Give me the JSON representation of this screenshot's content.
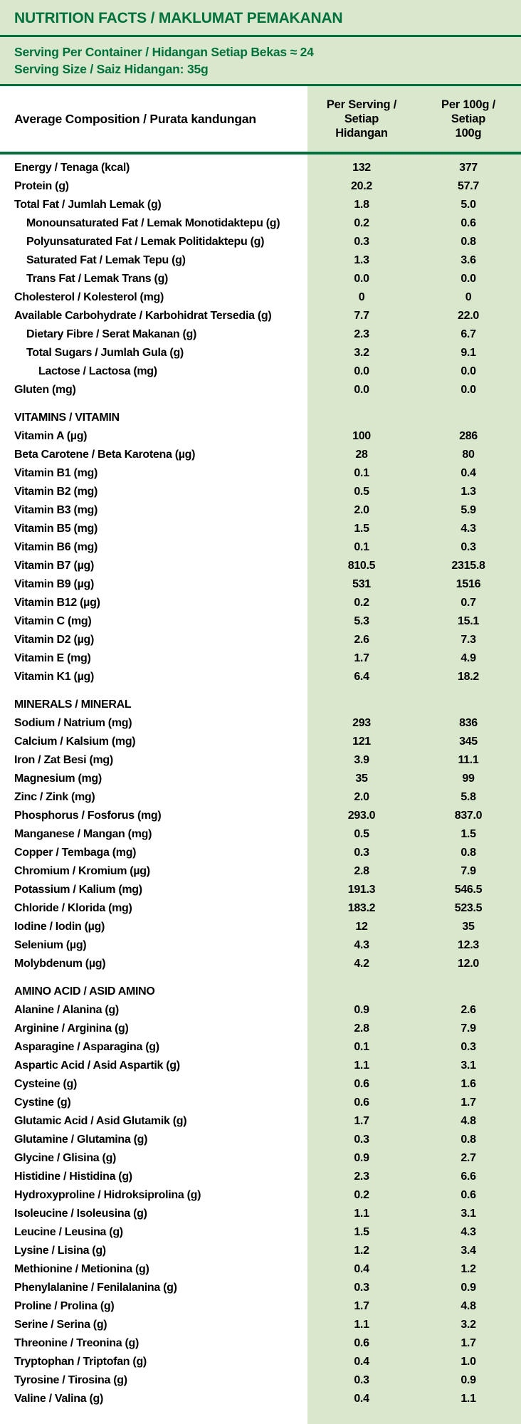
{
  "colors": {
    "dark_green": "#00713d",
    "light_green": "#d9e8cc",
    "text": "#000000"
  },
  "header": {
    "title": "NUTRITION FACTS / MAKLUMAT PEMAKANAN",
    "serving_per_container": "Serving Per Container / Hidangan Setiap Bekas ≈ 24",
    "serving_size": "Serving Size / Saiz Hidangan: 35g"
  },
  "table": {
    "col_composition": "Average Composition / Purata kandungan",
    "col_per_serving": "Per Serving /\nSetiap\nHidangan",
    "col_per_100g": "Per 100g /\nSetiap\n100g",
    "sections": [
      {
        "label": "",
        "rows": [
          {
            "label": "Energy / Tenaga (kcal)",
            "indent": 0,
            "per_serving": "132",
            "per_100g": "377"
          },
          {
            "label": "Protein (g)",
            "indent": 0,
            "per_serving": "20.2",
            "per_100g": "57.7"
          },
          {
            "label": "Total Fat / Jumlah Lemak (g)",
            "indent": 0,
            "per_serving": "1.8",
            "per_100g": "5.0"
          },
          {
            "label": "Monounsaturated Fat / Lemak Monotidaktepu (g)",
            "indent": 1,
            "per_serving": "0.2",
            "per_100g": "0.6"
          },
          {
            "label": "Polyunsaturated Fat / Lemak Politidaktepu (g)",
            "indent": 1,
            "per_serving": "0.3",
            "per_100g": "0.8"
          },
          {
            "label": "Saturated Fat / Lemak Tepu (g)",
            "indent": 1,
            "per_serving": "1.3",
            "per_100g": "3.6"
          },
          {
            "label": "Trans Fat / Lemak Trans (g)",
            "indent": 1,
            "per_serving": "0.0",
            "per_100g": "0.0"
          },
          {
            "label": "Cholesterol / Kolesterol (mg)",
            "indent": 0,
            "per_serving": "0",
            "per_100g": "0"
          },
          {
            "label": "Available Carbohydrate / Karbohidrat Tersedia (g)",
            "indent": 0,
            "per_serving": "7.7",
            "per_100g": "22.0"
          },
          {
            "label": "Dietary Fibre / Serat Makanan (g)",
            "indent": 1,
            "per_serving": "2.3",
            "per_100g": "6.7"
          },
          {
            "label": "Total Sugars / Jumlah Gula (g)",
            "indent": 1,
            "per_serving": "3.2",
            "per_100g": "9.1"
          },
          {
            "label": "Lactose / Lactosa (mg)",
            "indent": 2,
            "per_serving": "0.0",
            "per_100g": "0.0"
          },
          {
            "label": "Gluten (mg)",
            "indent": 0,
            "per_serving": "0.0",
            "per_100g": "0.0"
          }
        ]
      },
      {
        "label": "VITAMINS / VITAMIN",
        "rows": [
          {
            "label": "Vitamin A (µg)",
            "indent": 0,
            "per_serving": "100",
            "per_100g": "286"
          },
          {
            "label": "Beta Carotene / Beta Karotena (µg)",
            "indent": 0,
            "per_serving": "28",
            "per_100g": "80"
          },
          {
            "label": "Vitamin B1 (mg)",
            "indent": 0,
            "per_serving": "0.1",
            "per_100g": "0.4"
          },
          {
            "label": "Vitamin B2 (mg)",
            "indent": 0,
            "per_serving": "0.5",
            "per_100g": "1.3"
          },
          {
            "label": "Vitamin B3 (mg)",
            "indent": 0,
            "per_serving": "2.0",
            "per_100g": "5.9"
          },
          {
            "label": "Vitamin B5 (mg)",
            "indent": 0,
            "per_serving": "1.5",
            "per_100g": "4.3"
          },
          {
            "label": "Vitamin B6 (mg)",
            "indent": 0,
            "per_serving": "0.1",
            "per_100g": "0.3"
          },
          {
            "label": "Vitamin B7 (µg)",
            "indent": 0,
            "per_serving": "810.5",
            "per_100g": "2315.8"
          },
          {
            "label": "Vitamin B9 (µg)",
            "indent": 0,
            "per_serving": "531",
            "per_100g": "1516"
          },
          {
            "label": "Vitamin B12 (µg)",
            "indent": 0,
            "per_serving": "0.2",
            "per_100g": "0.7"
          },
          {
            "label": "Vitamin C (mg)",
            "indent": 0,
            "per_serving": "5.3",
            "per_100g": "15.1"
          },
          {
            "label": "Vitamin D2 (µg)",
            "indent": 0,
            "per_serving": "2.6",
            "per_100g": "7.3"
          },
          {
            "label": "Vitamin E (mg)",
            "indent": 0,
            "per_serving": "1.7",
            "per_100g": "4.9"
          },
          {
            "label": "Vitamin K1 (µg)",
            "indent": 0,
            "per_serving": "6.4",
            "per_100g": "18.2"
          }
        ]
      },
      {
        "label": "MINERALS / MINERAL",
        "rows": [
          {
            "label": "Sodium / Natrium (mg)",
            "indent": 0,
            "per_serving": "293",
            "per_100g": "836"
          },
          {
            "label": "Calcium / Kalsium (mg)",
            "indent": 0,
            "per_serving": "121",
            "per_100g": "345"
          },
          {
            "label": "Iron / Zat Besi (mg)",
            "indent": 0,
            "per_serving": "3.9",
            "per_100g": "11.1"
          },
          {
            "label": "Magnesium (mg)",
            "indent": 0,
            "per_serving": "35",
            "per_100g": "99"
          },
          {
            "label": "Zinc / Zink (mg)",
            "indent": 0,
            "per_serving": "2.0",
            "per_100g": "5.8"
          },
          {
            "label": "Phosphorus / Fosforus (mg)",
            "indent": 0,
            "per_serving": "293.0",
            "per_100g": "837.0"
          },
          {
            "label": "Manganese / Mangan (mg)",
            "indent": 0,
            "per_serving": "0.5",
            "per_100g": "1.5"
          },
          {
            "label": "Copper / Tembaga (mg)",
            "indent": 0,
            "per_serving": "0.3",
            "per_100g": "0.8"
          },
          {
            "label": "Chromium / Kromium (µg)",
            "indent": 0,
            "per_serving": "2.8",
            "per_100g": "7.9"
          },
          {
            "label": "Potassium / Kalium (mg)",
            "indent": 0,
            "per_serving": "191.3",
            "per_100g": "546.5"
          },
          {
            "label": "Chloride / Klorida (mg)",
            "indent": 0,
            "per_serving": "183.2",
            "per_100g": "523.5"
          },
          {
            "label": "Iodine / Iodin (µg)",
            "indent": 0,
            "per_serving": "12",
            "per_100g": "35"
          },
          {
            "label": "Selenium (µg)",
            "indent": 0,
            "per_serving": "4.3",
            "per_100g": "12.3"
          },
          {
            "label": "Molybdenum (µg)",
            "indent": 0,
            "per_serving": "4.2",
            "per_100g": "12.0"
          }
        ]
      },
      {
        "label": "AMINO ACID / ASID AMINO",
        "rows": [
          {
            "label": "Alanine / Alanina (g)",
            "indent": 0,
            "per_serving": "0.9",
            "per_100g": "2.6"
          },
          {
            "label": "Arginine / Arginina (g)",
            "indent": 0,
            "per_serving": "2.8",
            "per_100g": "7.9"
          },
          {
            "label": "Asparagine / Asparagina (g)",
            "indent": 0,
            "per_serving": "0.1",
            "per_100g": "0.3"
          },
          {
            "label": "Aspartic Acid / Asid Aspartik (g)",
            "indent": 0,
            "per_serving": "1.1",
            "per_100g": "3.1"
          },
          {
            "label": "Cysteine (g)",
            "indent": 0,
            "per_serving": "0.6",
            "per_100g": "1.6"
          },
          {
            "label": "Cystine (g)",
            "indent": 0,
            "per_serving": "0.6",
            "per_100g": "1.7"
          },
          {
            "label": "Glutamic Acid / Asid Glutamik (g)",
            "indent": 0,
            "per_serving": "1.7",
            "per_100g": "4.8"
          },
          {
            "label": "Glutamine / Glutamina (g)",
            "indent": 0,
            "per_serving": "0.3",
            "per_100g": "0.8"
          },
          {
            "label": "Glycine / Glisina (g)",
            "indent": 0,
            "per_serving": "0.9",
            "per_100g": "2.7"
          },
          {
            "label": "Histidine / Histidina (g)",
            "indent": 0,
            "per_serving": "2.3",
            "per_100g": "6.6"
          },
          {
            "label": "Hydroxyproline / Hidroksiprolina (g)",
            "indent": 0,
            "per_serving": "0.2",
            "per_100g": "0.6"
          },
          {
            "label": "Isoleucine / Isoleusina (g)",
            "indent": 0,
            "per_serving": "1.1",
            "per_100g": "3.1"
          },
          {
            "label": "Leucine / Leusina (g)",
            "indent": 0,
            "per_serving": "1.5",
            "per_100g": "4.3"
          },
          {
            "label": "Lysine / Lisina (g)",
            "indent": 0,
            "per_serving": "1.2",
            "per_100g": "3.4"
          },
          {
            "label": "Methionine / Metionina (g)",
            "indent": 0,
            "per_serving": "0.4",
            "per_100g": "1.2"
          },
          {
            "label": "Phenylalanine / Fenilalanina (g)",
            "indent": 0,
            "per_serving": "0.3",
            "per_100g": "0.9"
          },
          {
            "label": "Proline / Prolina (g)",
            "indent": 0,
            "per_serving": "1.7",
            "per_100g": "4.8"
          },
          {
            "label": "Serine / Serina (g)",
            "indent": 0,
            "per_serving": "1.1",
            "per_100g": "3.2"
          },
          {
            "label": "Threonine / Treonina (g)",
            "indent": 0,
            "per_serving": "0.6",
            "per_100g": "1.7"
          },
          {
            "label": "Tryptophan / Triptofan (g)",
            "indent": 0,
            "per_serving": "0.4",
            "per_100g": "1.0"
          },
          {
            "label": "Tyrosine / Tirosina (g)",
            "indent": 0,
            "per_serving": "0.3",
            "per_100g": "0.9"
          },
          {
            "label": "Valine / Valina (g)",
            "indent": 0,
            "per_serving": "0.4",
            "per_100g": "1.1"
          }
        ]
      }
    ]
  }
}
